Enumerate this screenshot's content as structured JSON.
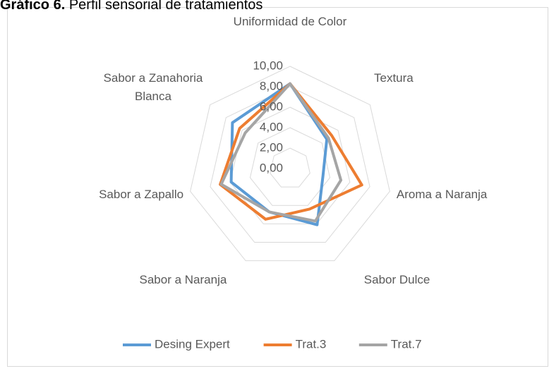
{
  "chart_data": {
    "type": "radar",
    "title_bold": "Gráfico 6.",
    "title": "Perfil sensorial de tratamientos",
    "categories": [
      "Uniformidad de Color",
      "Textura",
      "Aroma a Naranja",
      "Sabor Dulce",
      "Sabor a Naranja",
      "Sabor a Zapallo",
      "Sabor a Zanahoria Blanca"
    ],
    "series": [
      {
        "name": "Desing Expert",
        "color": "#5b9bd5",
        "values": [
          8.3,
          4.6,
          3.3,
          6.1,
          4.7,
          5.9,
          7.2
        ]
      },
      {
        "name": "Trat.3",
        "color": "#ed7d31",
        "values": [
          8.3,
          5.2,
          7.2,
          4.4,
          5.5,
          7.0,
          6.3
        ]
      },
      {
        "name": "Trat.7",
        "color": "#a5a5a5",
        "values": [
          8.3,
          4.8,
          5.1,
          5.7,
          4.7,
          6.9,
          5.6
        ]
      }
    ],
    "ylim": [
      0,
      10
    ],
    "yticks": [
      {
        "value": 0,
        "label": "0,00"
      },
      {
        "value": 2,
        "label": "2,00"
      },
      {
        "value": 4,
        "label": "4,00"
      },
      {
        "value": 6,
        "label": "6,00"
      },
      {
        "value": 8,
        "label": "8,00"
      },
      {
        "value": 10,
        "label": "10,00"
      }
    ],
    "grid": true,
    "legend": "bottom"
  }
}
